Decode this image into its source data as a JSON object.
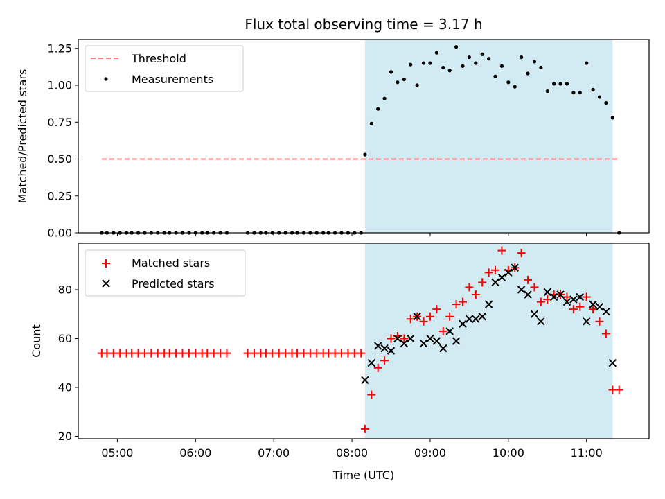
{
  "chart_data": [
    {
      "type": "scatter",
      "title": "Flux total observing time = 3.17 h",
      "xlabel": "",
      "ylabel": "Matched/Predicted stars",
      "xlim": [
        "04:30",
        "11:48"
      ],
      "ylim": [
        0,
        1.31
      ],
      "yticks": [
        0.0,
        0.25,
        0.5,
        0.75,
        1.0,
        1.25
      ],
      "ytick_labels": [
        "0.00",
        "0.25",
        "0.50",
        "0.75",
        "1.00",
        "1.25"
      ],
      "shaded_span": [
        "08:10",
        "11:20"
      ],
      "shaded_color": "#add8e6",
      "grid": false,
      "legend_position": "upper-left",
      "threshold": {
        "name": "Threshold",
        "value": 0.5,
        "x": [
          "04:48",
          "11:25"
        ],
        "color": "#ff7f7f",
        "style": "dashed"
      },
      "series": [
        {
          "name": "Measurements",
          "color": "#000000",
          "marker": "dot",
          "x": [
            "04:48",
            "04:52",
            "04:57",
            "05:02",
            "05:07",
            "05:11",
            "05:16",
            "05:21",
            "05:26",
            "05:31",
            "05:36",
            "05:40",
            "05:45",
            "05:50",
            "05:55",
            "06:00",
            "06:05",
            "06:09",
            "06:14",
            "06:19",
            "06:24",
            "06:40",
            "06:45",
            "06:50",
            "06:54",
            "06:59",
            "07:04",
            "07:09",
            "07:14",
            "07:18",
            "07:23",
            "07:28",
            "07:33",
            "07:38",
            "07:42",
            "07:47",
            "07:52",
            "07:57",
            "08:02",
            "08:07",
            "08:10",
            "08:15",
            "08:20",
            "08:25",
            "08:30",
            "08:35",
            "08:40",
            "08:45",
            "08:50",
            "08:55",
            "09:00",
            "09:05",
            "09:10",
            "09:15",
            "09:20",
            "09:25",
            "09:30",
            "09:35",
            "09:40",
            "09:45",
            "09:50",
            "09:55",
            "10:00",
            "10:05",
            "10:10",
            "10:15",
            "10:20",
            "10:25",
            "10:30",
            "10:35",
            "10:40",
            "10:45",
            "10:50",
            "10:55",
            "11:00",
            "11:05",
            "11:10",
            "11:15",
            "11:20",
            "11:25"
          ],
          "y": [
            0,
            0,
            0,
            0,
            0,
            0,
            0,
            0,
            0,
            0,
            0,
            0,
            0,
            0,
            0,
            0,
            0,
            0,
            0,
            0,
            0,
            0,
            0,
            0,
            0,
            0,
            0,
            0,
            0,
            0,
            0,
            0,
            0,
            0,
            0,
            0,
            0,
            0,
            0,
            0,
            0.53,
            0.74,
            0.84,
            0.91,
            1.09,
            1.02,
            1.04,
            1.14,
            1.0,
            1.15,
            1.15,
            1.22,
            1.12,
            1.1,
            1.26,
            1.13,
            1.19,
            1.15,
            1.21,
            1.18,
            1.06,
            1.13,
            1.02,
            0.99,
            1.19,
            1.08,
            1.16,
            1.12,
            0.96,
            1.01,
            1.01,
            1.01,
            0.95,
            0.95,
            1.15,
            0.97,
            0.92,
            0.88,
            0.78,
            0
          ]
        }
      ]
    },
    {
      "type": "scatter",
      "title": "",
      "xlabel": "Time (UTC)",
      "ylabel": "Count",
      "xlim": [
        "04:30",
        "11:48"
      ],
      "ylim": [
        19,
        99
      ],
      "yticks": [
        20,
        40,
        60,
        80
      ],
      "ytick_labels": [
        "20",
        "40",
        "60",
        "80"
      ],
      "xticks": [
        "05:00",
        "06:00",
        "07:00",
        "08:00",
        "09:00",
        "10:00",
        "11:00"
      ],
      "xtick_labels": [
        "05:00",
        "06:00",
        "07:00",
        "08:00",
        "09:00",
        "10:00",
        "11:00"
      ],
      "shaded_span": [
        "08:10",
        "11:20"
      ],
      "shaded_color": "#add8e6",
      "grid": false,
      "legend_position": "upper-left",
      "series": [
        {
          "name": "Matched stars",
          "color": "#ff0000",
          "marker": "plus",
          "x": [
            "04:48",
            "04:52",
            "04:57",
            "05:02",
            "05:07",
            "05:11",
            "05:16",
            "05:21",
            "05:26",
            "05:31",
            "05:36",
            "05:40",
            "05:45",
            "05:50",
            "05:55",
            "06:00",
            "06:05",
            "06:09",
            "06:14",
            "06:19",
            "06:24",
            "06:40",
            "06:45",
            "06:50",
            "06:54",
            "06:59",
            "07:04",
            "07:09",
            "07:14",
            "07:18",
            "07:23",
            "07:28",
            "07:33",
            "07:38",
            "07:42",
            "07:47",
            "07:52",
            "07:57",
            "08:02",
            "08:07",
            "08:10",
            "08:15",
            "08:20",
            "08:25",
            "08:30",
            "08:35",
            "08:40",
            "08:45",
            "08:50",
            "08:55",
            "09:00",
            "09:05",
            "09:10",
            "09:15",
            "09:20",
            "09:25",
            "09:30",
            "09:35",
            "09:40",
            "09:45",
            "09:50",
            "09:55",
            "10:00",
            "10:05",
            "10:10",
            "10:15",
            "10:20",
            "10:25",
            "10:30",
            "10:35",
            "10:40",
            "10:45",
            "10:50",
            "10:55",
            "11:00",
            "11:05",
            "11:10",
            "11:15",
            "11:20",
            "11:25"
          ],
          "y": [
            54,
            54,
            54,
            54,
            54,
            54,
            54,
            54,
            54,
            54,
            54,
            54,
            54,
            54,
            54,
            54,
            54,
            54,
            54,
            54,
            54,
            54,
            54,
            54,
            54,
            54,
            54,
            54,
            54,
            54,
            54,
            54,
            54,
            54,
            54,
            54,
            54,
            54,
            54,
            54,
            23,
            37,
            48,
            51,
            60,
            61,
            60,
            68,
            69,
            67,
            69,
            72,
            63,
            69,
            74,
            75,
            81,
            78,
            83,
            87,
            88,
            96,
            88,
            89,
            95,
            84,
            81,
            75,
            76,
            78,
            78,
            77,
            72,
            73,
            77,
            72,
            67,
            62,
            39,
            39
          ]
        },
        {
          "name": "Predicted stars",
          "color": "#000000",
          "marker": "x",
          "x": [
            "08:10",
            "08:15",
            "08:20",
            "08:25",
            "08:30",
            "08:35",
            "08:40",
            "08:45",
            "08:50",
            "08:55",
            "09:00",
            "09:05",
            "09:10",
            "09:15",
            "09:20",
            "09:25",
            "09:30",
            "09:35",
            "09:40",
            "09:45",
            "09:50",
            "09:55",
            "10:00",
            "10:05",
            "10:10",
            "10:15",
            "10:20",
            "10:25",
            "10:30",
            "10:35",
            "10:40",
            "10:45",
            "10:50",
            "10:55",
            "11:00",
            "11:05",
            "11:10",
            "11:15",
            "11:20"
          ],
          "y": [
            43,
            50,
            57,
            56,
            55,
            60,
            58,
            60,
            69,
            58,
            60,
            59,
            56,
            63,
            59,
            66,
            68,
            68,
            69,
            74,
            83,
            85,
            87,
            89,
            80,
            78,
            70,
            67,
            79,
            77,
            78,
            75,
            76,
            77,
            67,
            74,
            73,
            71,
            50
          ]
        }
      ]
    }
  ]
}
